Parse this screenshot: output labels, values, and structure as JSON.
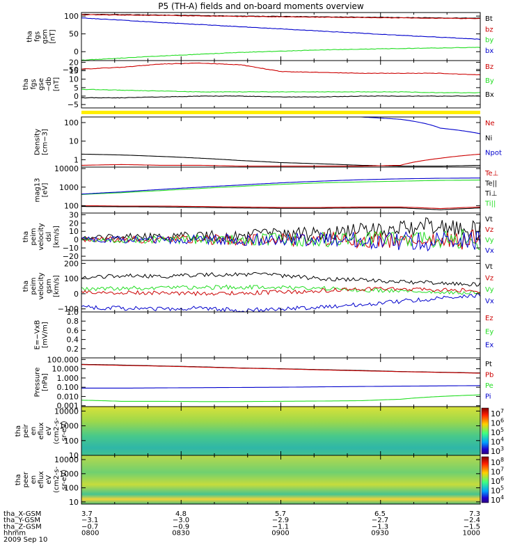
{
  "title": "P5 (TH-A) fields and on-board moments overview",
  "colors": {
    "black": "#000000",
    "red": "#cc0000",
    "green": "#22dd22",
    "blue": "#0000cc",
    "yellow": "#ffee00"
  },
  "chart_data": {
    "type": "line",
    "x_ticks": [
      "0800",
      "0830",
      "0900",
      "0930",
      "1000"
    ],
    "panels": [
      {
        "id": "fgs-gsm",
        "ylabel": [
          "tha",
          "fgs",
          "gsm",
          "[nT]"
        ],
        "ylim": [
          -25,
          110
        ],
        "scale": "linear",
        "ticks": [
          {
            "v": 100,
            "label": "100"
          },
          {
            "v": 50,
            "label": "50"
          },
          {
            "v": 0,
            "label": "0"
          },
          {
            "v": -50,
            "label": "−50"
          }
        ],
        "legend": [
          {
            "label": "Bt",
            "color": "black"
          },
          {
            "label": "bz",
            "color": "red"
          },
          {
            "label": "by",
            "color": "green"
          },
          {
            "label": "bx",
            "color": "blue"
          }
        ],
        "series": [
          {
            "name": "Bt",
            "color": "black",
            "values": [
              105,
              103,
              100,
              98,
              96,
              94
            ]
          },
          {
            "name": "bz",
            "color": "red",
            "values": [
              104,
              102,
              99,
              97,
              95,
              93
            ]
          },
          {
            "name": "by",
            "color": "green",
            "values": [
              -24,
              -12,
              -2,
              5,
              9,
              12
            ]
          },
          {
            "name": "bx",
            "color": "blue",
            "values": [
              95,
              82,
              70,
              58,
              46,
              35
            ]
          }
        ]
      },
      {
        "id": "fgs-gse",
        "ylabel": [
          "tha",
          "fgs",
          "gse",
          "−db",
          "[nT]"
        ],
        "ylim": [
          -7,
          21
        ],
        "scale": "linear",
        "ticks": [
          {
            "v": 20,
            "label": "20"
          },
          {
            "v": 15,
            "label": "15"
          },
          {
            "v": 10,
            "label": "10"
          },
          {
            "v": 5,
            "label": "5"
          },
          {
            "v": 0,
            "label": "0"
          },
          {
            "v": -5,
            "label": "−5"
          }
        ],
        "legend": [
          {
            "label": "Bz",
            "color": "red"
          },
          {
            "label": "By",
            "color": "green"
          },
          {
            "label": "Bx",
            "color": "black"
          }
        ],
        "series": [
          {
            "name": "Bz",
            "color": "red",
            "values": [
              16,
              17,
              19,
              19.5,
              18.5,
              14.5,
              14,
              13.5,
              13.5,
              13.5,
              12.5
            ]
          },
          {
            "name": "By",
            "color": "green",
            "values": [
              4,
              3.5,
              3,
              2.5,
              2.5,
              2.5,
              2.5,
              2.5,
              2.5,
              2,
              2
            ]
          },
          {
            "name": "Bx",
            "color": "black",
            "values": [
              -1,
              -1,
              -0.5,
              0,
              0,
              -0.5,
              -0.5,
              0,
              0,
              0,
              0
            ]
          }
        ]
      },
      {
        "id": "density",
        "ylabel": [
          "Density",
          "[cm−3]"
        ],
        "ylim": [
          0.4,
          200
        ],
        "scale": "log",
        "ticks": [
          {
            "v": 100,
            "label": "100"
          },
          {
            "v": 10,
            "label": "10"
          },
          {
            "v": 1,
            "label": "1"
          }
        ],
        "legend": [
          {
            "label": "Ne",
            "color": "red"
          },
          {
            "label": "Ni",
            "color": "black"
          },
          {
            "label": "Npot",
            "color": "blue"
          }
        ],
        "series": [
          {
            "name": "Ni",
            "color": "black",
            "values": [
              2,
              1.8,
              1.5,
              1.2,
              0.9,
              0.7,
              0.6,
              0.5,
              0.45,
              0.45,
              0.5
            ]
          },
          {
            "name": "Ne",
            "color": "red",
            "values": [
              0.5,
              0.55,
              0.5,
              0.5,
              0.45,
              0.45,
              0.45,
              0.45,
              0.5,
              1.2,
              2
            ]
          },
          {
            "name": "Npot",
            "color": "blue",
            "values": [
              200,
              200,
              200,
              200,
              200,
              200,
              200,
              200,
              150,
              50,
              25
            ]
          }
        ]
      },
      {
        "id": "temperature",
        "ylabel": [
          "mag13",
          "[eV]"
        ],
        "ylim": [
          40,
          12000
        ],
        "scale": "log",
        "ticks": [
          {
            "v": 10000,
            "label": "10000"
          },
          {
            "v": 1000,
            "label": "1000"
          },
          {
            "v": 100,
            "label": "100"
          }
        ],
        "legend": [
          {
            "label": "Te⊥",
            "color": "red"
          },
          {
            "label": "Te||",
            "color": "black"
          },
          {
            "label": "Ti⊥",
            "color": "black"
          },
          {
            "label": "Ti||",
            "color": "green"
          }
        ],
        "series": [
          {
            "name": "Ti||",
            "color": "green",
            "values": [
              400,
              500,
              650,
              850,
              1100,
              1400,
              1700,
              1900,
              2100,
              2300,
              2400
            ]
          },
          {
            "name": "Ti⊥",
            "color": "blue",
            "values": [
              420,
              550,
              750,
              1000,
              1300,
              1700,
              2100,
              2500,
              2800,
              3000,
              3100
            ]
          },
          {
            "name": "Te⊥",
            "color": "red",
            "values": [
              100,
              95,
              95,
              90,
              85,
              80,
              80,
              85,
              85,
              70,
              85
            ]
          },
          {
            "name": "Te||",
            "color": "black",
            "values": [
              90,
              88,
              85,
              80,
              75,
              72,
              72,
              75,
              75,
              60,
              75
            ]
          }
        ]
      },
      {
        "id": "peim-dsl",
        "ylabel": [
          "tha",
          "peim",
          "velocity",
          "dsl",
          "[km/s]"
        ],
        "ylim": [
          -25,
          32
        ],
        "scale": "linear",
        "ticks": [
          {
            "v": 30,
            "label": "30"
          },
          {
            "v": 20,
            "label": "20"
          },
          {
            "v": 10,
            "label": "10"
          },
          {
            "v": 0,
            "label": "0"
          },
          {
            "v": -10,
            "label": "−10"
          },
          {
            "v": -20,
            "label": "−20"
          }
        ],
        "legend": [
          {
            "label": "Vt",
            "color": "black"
          },
          {
            "label": "Vz",
            "color": "red"
          },
          {
            "label": "Vy",
            "color": "green"
          },
          {
            "label": "Vx",
            "color": "blue"
          }
        ],
        "series": [
          {
            "name": "Vt",
            "color": "black",
            "values": [
              3,
              4,
              4,
              5,
              5,
              6,
              8,
              10,
              14,
              16,
              10
            ]
          },
          {
            "name": "Vz",
            "color": "red",
            "values": [
              0,
              0,
              0,
              0,
              0,
              0,
              0,
              0,
              0,
              0,
              0
            ]
          },
          {
            "name": "Vy",
            "color": "green",
            "values": [
              0,
              0,
              0,
              0,
              0,
              0,
              0,
              0,
              0,
              0,
              0
            ]
          },
          {
            "name": "Vx",
            "color": "blue",
            "values": [
              0,
              0,
              0,
              0,
              0,
              0,
              0,
              0,
              -2,
              -2,
              -1
            ]
          }
        ]
      },
      {
        "id": "peim-gsm",
        "ylabel": [
          "tha",
          "peim",
          "velocity",
          "gsm",
          "[km/s]"
        ],
        "ylim": [
          -120,
          220
        ],
        "scale": "linear",
        "ticks": [
          {
            "v": 200,
            "label": "200"
          },
          {
            "v": 100,
            "label": "100"
          },
          {
            "v": 0,
            "label": "0"
          },
          {
            "v": -100,
            "label": "−100"
          }
        ],
        "legend": [
          {
            "label": "Vt",
            "color": "black"
          },
          {
            "label": "Vz",
            "color": "red"
          },
          {
            "label": "Vy",
            "color": "green"
          },
          {
            "label": "Vx",
            "color": "blue"
          }
        ],
        "series": [
          {
            "name": "Vt",
            "color": "black",
            "values": [
              110,
              120,
              115,
              125,
              130,
              120,
              100,
              90,
              80,
              70,
              60
            ]
          },
          {
            "name": "Vy",
            "color": "green",
            "values": [
              30,
              35,
              40,
              40,
              45,
              40,
              35,
              25,
              20,
              10,
              5
            ]
          },
          {
            "name": "Vz",
            "color": "red",
            "values": [
              10,
              10,
              5,
              0,
              5,
              10,
              20,
              30,
              30,
              25,
              20
            ]
          },
          {
            "name": "Vx",
            "color": "blue",
            "values": [
              -90,
              -95,
              -100,
              -95,
              -110,
              -100,
              -90,
              -70,
              -50,
              -30,
              -10
            ]
          }
        ]
      },
      {
        "id": "efield",
        "ylabel": [
          "E=−VxB",
          "[mV/m]"
        ],
        "ylim": [
          0,
          1
        ],
        "scale": "linear",
        "ticks": [
          {
            "v": 1.0,
            "label": "1.0"
          },
          {
            "v": 0.8,
            "label": "0.8"
          },
          {
            "v": 0.6,
            "label": "0.6"
          },
          {
            "v": 0.4,
            "label": "0.4"
          },
          {
            "v": 0.2,
            "label": "0.2"
          }
        ],
        "legend": [
          {
            "label": "Ez",
            "color": "red"
          },
          {
            "label": "Ey",
            "color": "green"
          },
          {
            "label": "Ex",
            "color": "blue"
          }
        ],
        "series": []
      },
      {
        "id": "pressure",
        "ylabel": [
          "Pressure",
          "[nPa]"
        ],
        "ylim": [
          0.0008,
          150
        ],
        "scale": "log",
        "ticks": [
          {
            "v": 100,
            "label": "100.000"
          },
          {
            "v": 10,
            "label": "10.000"
          },
          {
            "v": 1,
            "label": "1.000"
          },
          {
            "v": 0.1,
            "label": "0.100"
          },
          {
            "v": 0.01,
            "label": "0.010"
          },
          {
            "v": 0.001,
            "label": "0.001"
          }
        ],
        "legend": [
          {
            "label": "Pt",
            "color": "black"
          },
          {
            "label": "Pb",
            "color": "red"
          },
          {
            "label": "Pe",
            "color": "green"
          },
          {
            "label": "Pi",
            "color": "blue"
          }
        ],
        "series": [
          {
            "name": "Pt",
            "color": "black",
            "values": [
              30,
              25,
              20,
              16,
              12,
              10,
              8,
              6.5,
              5,
              4.2,
              3.5
            ]
          },
          {
            "name": "Pb",
            "color": "red",
            "values": [
              28,
              23,
              19,
              15,
              11.5,
              9.5,
              7.5,
              6,
              4.8,
              4,
              3.3
            ]
          },
          {
            "name": "Pi",
            "color": "blue",
            "values": [
              0.08,
              0.08,
              0.085,
              0.09,
              0.095,
              0.1,
              0.11,
              0.12,
              0.13,
              0.14,
              0.15
            ]
          },
          {
            "name": "Pe",
            "color": "green",
            "values": [
              0.004,
              0.003,
              0.003,
              0.0028,
              0.0028,
              0.003,
              0.0032,
              0.0035,
              0.005,
              0.01,
              0.015
            ]
          }
        ]
      },
      {
        "id": "peir",
        "type": "heatmap",
        "ylabel": [
          "tha",
          "peir",
          "en",
          "eflux",
          "eV",
          "(cm2-s-",
          "sr-eV)"
        ],
        "ylim": [
          10,
          20000
        ],
        "scale": "log",
        "ticks": [
          {
            "v": 10000,
            "label": "10000"
          },
          {
            "v": 1000,
            "label": "1000"
          },
          {
            "v": 100,
            "label": "100"
          },
          {
            "v": 10,
            "label": "10"
          }
        ],
        "colorbar": {
          "exp_labels": [
            "7",
            "6",
            "5",
            "4",
            "3"
          ],
          "base": "10"
        }
      },
      {
        "id": "peer",
        "type": "heatmap",
        "ylabel": [
          "tha",
          "peer",
          "en",
          "eflux",
          "eV",
          "(cm2-s-",
          "sr-eV)"
        ],
        "ylim": [
          7,
          20000
        ],
        "scale": "log",
        "ticks": [
          {
            "v": 10000,
            "label": "10000"
          },
          {
            "v": 1000,
            "label": "1000"
          },
          {
            "v": 100,
            "label": "100"
          },
          {
            "v": 10,
            "label": "10"
          }
        ],
        "colorbar": {
          "exp_labels": [
            "8",
            "7",
            "6",
            "5",
            "4"
          ],
          "base": "10"
        }
      }
    ],
    "orbit": {
      "rows": [
        {
          "label": "tha_X-GSM",
          "values": [
            "3.7",
            "4.8",
            "5.7",
            "6.5",
            "7.3"
          ]
        },
        {
          "label": "tha_Y-GSM",
          "values": [
            "−3.1",
            "−3.0",
            "−2.9",
            "−2.7",
            "−2.4"
          ]
        },
        {
          "label": "tha_Z-GSM",
          "values": [
            "−0.7",
            "−0.9",
            "−1.1",
            "−1.3",
            "−1.5"
          ]
        },
        {
          "label": "hhmm",
          "values": [
            "0800",
            "0830",
            "0900",
            "0930",
            "1000"
          ]
        }
      ],
      "date": "2009 Sep 10"
    }
  }
}
